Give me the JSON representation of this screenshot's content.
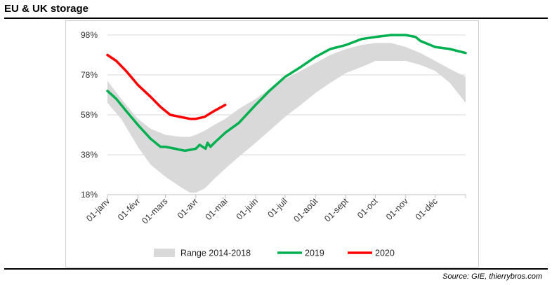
{
  "header": {
    "title": "EU & UK storage"
  },
  "footer": {
    "source": "Source: GIE, thierrybros.com"
  },
  "colors": {
    "band": "#d9d9d9",
    "y2019": "#00b050",
    "y2020": "#ff0000",
    "grid": "#d9d9d9"
  },
  "chart_data": {
    "type": "line",
    "title": "",
    "xlabel": "",
    "ylabel": "",
    "ylim": [
      18,
      98
    ],
    "yticks": [
      "18%",
      "38%",
      "58%",
      "78%",
      "98%"
    ],
    "ytick_values": [
      18,
      38,
      58,
      78,
      98
    ],
    "x_unit": "day of year",
    "xlim": [
      1,
      366
    ],
    "xticks": [
      "01-janv",
      "01-févr",
      "01-mars",
      "01-avr",
      "01-mai",
      "01-juin",
      "01-juil",
      "01-août",
      "01-sept",
      "01-oct",
      "01-nov",
      "01-déc"
    ],
    "xtick_days": [
      1,
      32,
      60,
      91,
      121,
      152,
      182,
      213,
      244,
      274,
      305,
      335
    ],
    "grid": "horizontal",
    "legend": [
      "Range 2014-2018",
      "2019",
      "2020"
    ],
    "legend_position": "bottom",
    "band": {
      "name": "Range 2014-2018",
      "x": [
        1,
        15,
        32,
        45,
        60,
        75,
        85,
        91,
        100,
        110,
        121,
        135,
        152,
        166,
        182,
        198,
        213,
        228,
        244,
        260,
        274,
        290,
        305,
        320,
        335,
        350,
        366
      ],
      "low": [
        64,
        56,
        42,
        33,
        27,
        22,
        19,
        19,
        21,
        26,
        31,
        37,
        44,
        50,
        57,
        63,
        69,
        74,
        79,
        82,
        85,
        85,
        85,
        83,
        80,
        74,
        64
      ],
      "high": [
        75,
        66,
        56,
        51,
        48,
        47,
        47,
        48,
        50,
        53,
        56,
        61,
        66,
        71,
        76,
        80,
        84,
        88,
        91,
        93,
        94,
        94,
        92,
        89,
        85,
        81,
        77
      ]
    },
    "series": [
      {
        "name": "2019",
        "x": [
          1,
          10,
          20,
          32,
          45,
          55,
          60,
          70,
          80,
          91,
          95,
          101,
          103,
          106,
          110,
          121,
          135,
          152,
          166,
          182,
          198,
          213,
          228,
          244,
          260,
          274,
          290,
          300,
          305,
          315,
          320,
          335,
          350,
          366
        ],
        "y": [
          70,
          66,
          60,
          53,
          46,
          42,
          42,
          41,
          40,
          41,
          43,
          41,
          44,
          42,
          44,
          49,
          54,
          63,
          70,
          77,
          82,
          87,
          91,
          93,
          96,
          97,
          98,
          98,
          98,
          97,
          95,
          92,
          91,
          89
        ]
      },
      {
        "name": "2020",
        "x": [
          1,
          10,
          20,
          32,
          45,
          55,
          65,
          75,
          85,
          91,
          100,
          110,
          121
        ],
        "y": [
          88,
          85,
          80,
          73,
          67,
          62,
          58,
          57,
          56,
          56,
          57,
          60,
          63
        ]
      }
    ]
  }
}
